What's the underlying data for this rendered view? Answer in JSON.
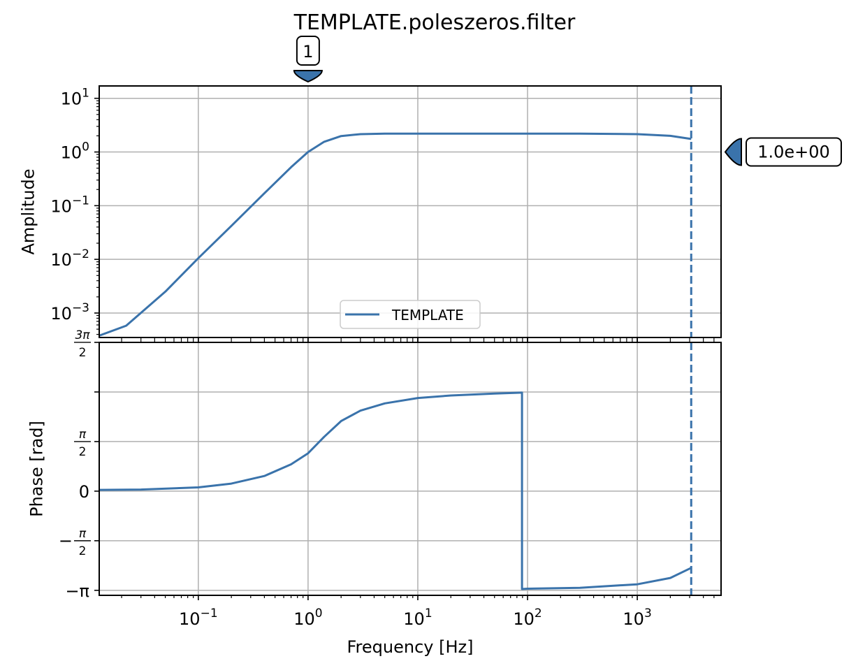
{
  "figure": {
    "title": "TEMPLATE.poleszeros.filter",
    "line_color": "#3a73ab",
    "grid_color": "#b0b0b0"
  },
  "chart_data": [
    {
      "type": "line",
      "panel": "amplitude",
      "xscale": "log",
      "yscale": "log",
      "xlim": [
        0.0125,
        5800
      ],
      "ylim": [
        0.00035,
        17
      ],
      "ylabel": "Amplitude",
      "xlabel": "",
      "grid": true,
      "legend": {
        "entries": [
          "TEMPLATE"
        ],
        "placement": "lower-center"
      },
      "y_tick_labels": [
        {
          "value": 0.001,
          "base": "10",
          "exp": "−3"
        },
        {
          "value": 0.01,
          "base": "10",
          "exp": "−2"
        },
        {
          "value": 0.1,
          "base": "10",
          "exp": "−1"
        },
        {
          "value": 1,
          "base": "10",
          "exp": "0"
        },
        {
          "value": 10,
          "base": "10",
          "exp": "1"
        }
      ],
      "series": [
        {
          "name": "TEMPLATE",
          "x": [
            0.0125,
            0.022,
            0.05,
            0.1,
            0.2,
            0.4,
            0.7,
            1.0,
            1.4,
            2.0,
            3.0,
            5.0,
            10,
            30,
            100,
            300,
            1000,
            2000,
            3100
          ],
          "y": [
            0.00038,
            0.00058,
            0.0025,
            0.0105,
            0.042,
            0.17,
            0.52,
            1.0,
            1.55,
            1.98,
            2.15,
            2.2,
            2.2,
            2.2,
            2.2,
            2.2,
            2.15,
            2.0,
            1.75
          ]
        }
      ],
      "annotations": [
        {
          "type": "vline",
          "x": 3100,
          "style": "dashed"
        },
        {
          "type": "marker",
          "label": "1",
          "x": 1.0,
          "position": "above-axes"
        },
        {
          "type": "marker",
          "label": "1.0e+00",
          "y": 1.0,
          "position": "right-of-axes"
        }
      ]
    },
    {
      "type": "line",
      "panel": "phase",
      "xscale": "log",
      "yscale": "linear",
      "xlim": [
        0.0125,
        5800
      ],
      "ylim": [
        -3.3,
        4.712
      ],
      "ylabel": "Phase [rad]",
      "xlabel": "Frequency [Hz]",
      "grid": true,
      "x_tick_labels": [
        {
          "value": 0.1,
          "base": "10",
          "exp": "−1"
        },
        {
          "value": 1,
          "base": "10",
          "exp": "0"
        },
        {
          "value": 10,
          "base": "10",
          "exp": "1"
        },
        {
          "value": 100,
          "base": "10",
          "exp": "2"
        },
        {
          "value": 1000,
          "base": "10",
          "exp": "3"
        }
      ],
      "y_tick_labels": [
        {
          "value": -3.1416,
          "label": "−π"
        },
        {
          "value": -1.5708,
          "label": "−π/2"
        },
        {
          "value": 0,
          "label": "0"
        },
        {
          "value": 1.5708,
          "label": "π/2"
        },
        {
          "value": 3.1416,
          "label": ""
        },
        {
          "value": 4.7124,
          "label": "3π/2"
        }
      ],
      "series": [
        {
          "name": "TEMPLATE",
          "x": [
            0.0125,
            0.03,
            0.1,
            0.2,
            0.4,
            0.7,
            1.0,
            1.4,
            2.0,
            3.0,
            5.0,
            10,
            20,
            50,
            89,
            89,
            100,
            300,
            1000,
            2000,
            3100
          ],
          "y": [
            0.04,
            0.05,
            0.12,
            0.24,
            0.48,
            0.85,
            1.2,
            1.72,
            2.22,
            2.55,
            2.78,
            2.95,
            3.03,
            3.09,
            3.12,
            -3.1,
            -3.09,
            -3.06,
            -2.95,
            -2.75,
            -2.43
          ]
        }
      ],
      "annotations": [
        {
          "type": "vline",
          "x": 3100,
          "style": "dashed"
        }
      ]
    }
  ]
}
